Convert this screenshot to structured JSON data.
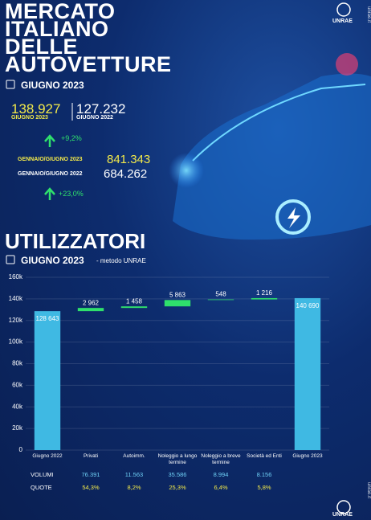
{
  "header": {
    "title_lines": [
      "MERCATO",
      "ITALIANO",
      "DELLE",
      "AUTOVETTURE"
    ],
    "period": "GIUGNO 2023",
    "logo": "UNRAE",
    "side_text": "unrae.it"
  },
  "stats": {
    "month_current": {
      "value": "138.927",
      "label": "GIUGNO 2023"
    },
    "month_previous": {
      "value": "127.232",
      "label": "GIUGNO 2022"
    },
    "month_change": "+9,2%",
    "ytd_current": {
      "label": "GENNAIO/GIUGNO 2023",
      "value": "841.343"
    },
    "ytd_previous": {
      "label": "GENNAIO/GIUGNO 2022",
      "value": "684.262"
    },
    "ytd_change": "+23,0%"
  },
  "section": {
    "title": "UTILIZZATORI",
    "period": "GIUGNO 2023",
    "note": "- metodo UNRAE"
  },
  "chart_data": {
    "type": "waterfall",
    "categories": [
      "Giugno 2022",
      "Privati",
      "Autoimm.",
      "Noleggio a lungo termine",
      "Noleggio a breve termine",
      "Società ed Enti",
      "Giugno 2023"
    ],
    "values": [
      128643,
      2962,
      1458,
      5863,
      548,
      1216,
      140690
    ],
    "value_labels": [
      "128 643",
      "2 962",
      "1 458",
      "5 863",
      "548",
      "1 216",
      "140 690"
    ],
    "measure": [
      "absolute",
      "relative",
      "relative",
      "relative",
      "relative",
      "relative",
      "absolute"
    ],
    "total_color": "#3fb9e3",
    "increase_color": "#2fe06c",
    "ylim": [
      0,
      160000
    ],
    "yticks": [
      0,
      {
        "value": 20000,
        "label": "20k"
      },
      {
        "value": 40000,
        "label": "40k"
      },
      {
        "value": 60000,
        "label": "60k"
      },
      {
        "value": 80000,
        "label": "80k"
      },
      {
        "value": 100000,
        "label": "100k"
      },
      {
        "value": 120000,
        "label": "120k"
      },
      {
        "value": 140000,
        "label": "140k"
      },
      {
        "value": 160000,
        "label": "160k"
      }
    ],
    "grid": true
  },
  "table": {
    "rows": [
      {
        "label": "VOLUMI",
        "values": [
          "76.391",
          "11.563",
          "35.586",
          "8.994",
          "8.156"
        ]
      },
      {
        "label": "QUOTE",
        "values": [
          "54,3%",
          "8,2%",
          "25,3%",
          "6,4%",
          "5,8%"
        ]
      }
    ]
  }
}
